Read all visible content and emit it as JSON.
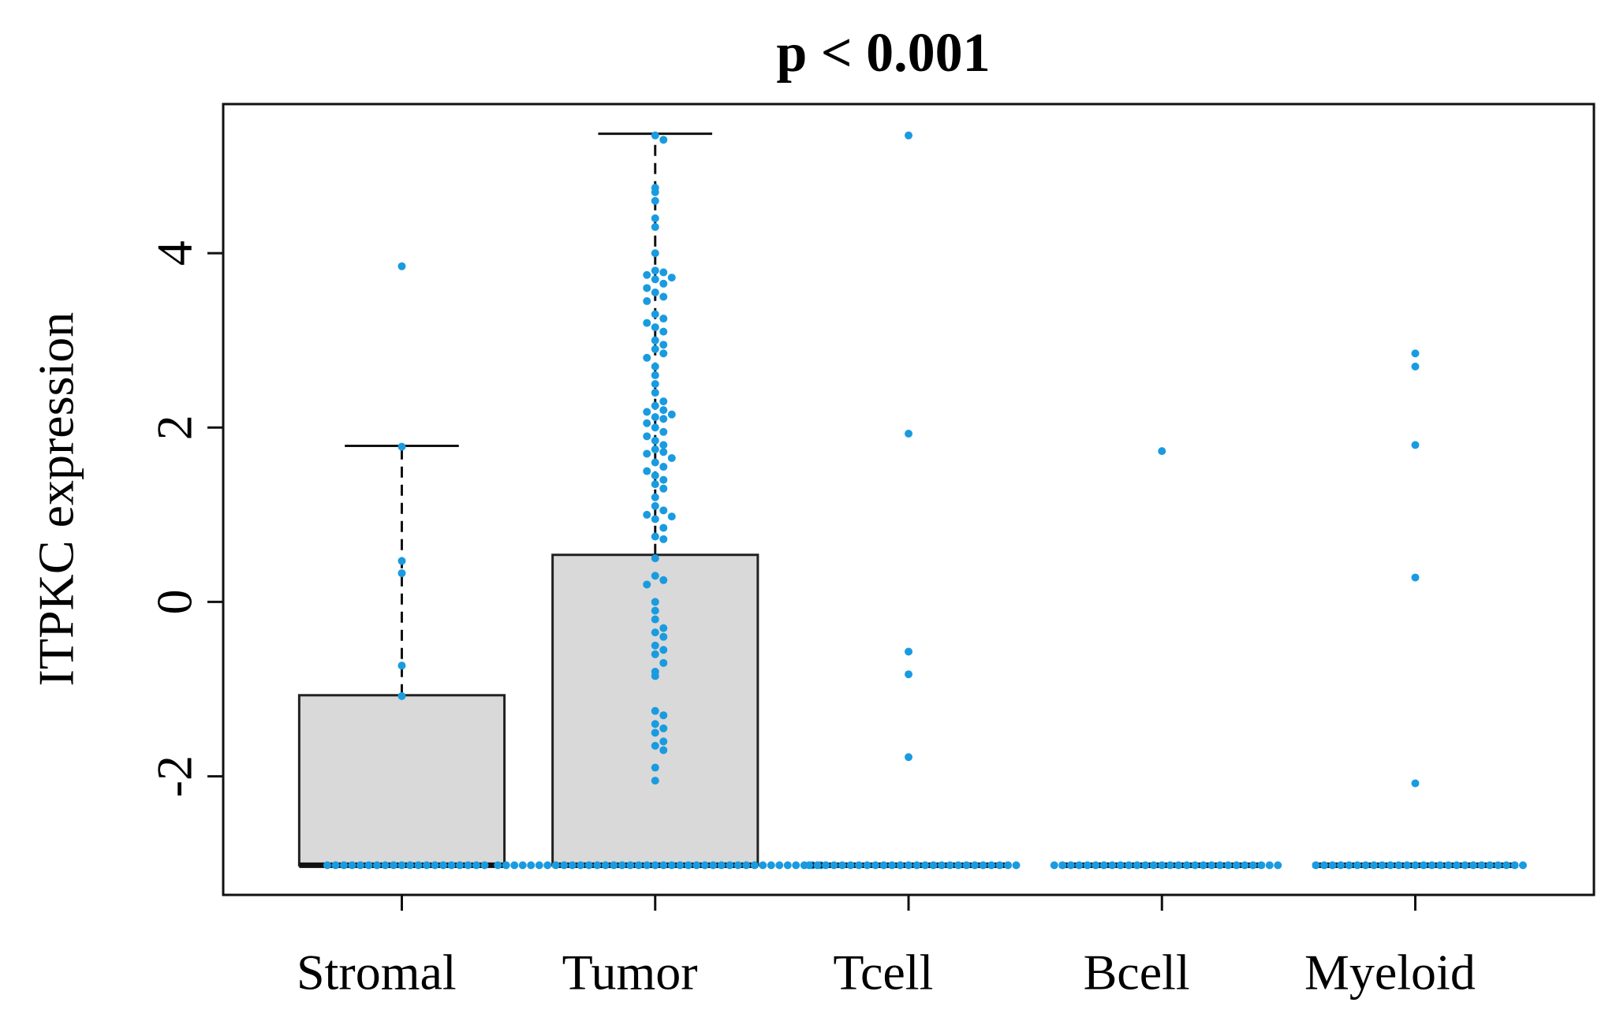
{
  "chart_data": {
    "type": "box",
    "title": "p < 0.001",
    "y_label": "ITPKC expression",
    "categories": [
      "Stromal",
      "Tumor",
      "Tcell",
      "Bcell",
      "Myeloid"
    ],
    "ylim": [
      -3.36,
      5.71
    ],
    "yticks": [
      -2,
      0,
      2,
      4
    ],
    "box_color": "#d9d9d9",
    "point_color": "#1a9be0",
    "boxes": [
      {
        "min": -3.02,
        "q1": -3.02,
        "median": -3.02,
        "q3": -1.07,
        "max": 1.79
      },
      {
        "min": -3.02,
        "q1": -3.02,
        "median": -3.02,
        "q3": 0.54,
        "max": 5.37
      },
      {
        "min": -3.02,
        "q1": -3.02,
        "median": -3.02,
        "q3": -3.02,
        "max": -3.02
      },
      {
        "min": -3.02,
        "q1": -3.02,
        "median": -3.02,
        "q3": -3.02,
        "max": -3.02
      },
      {
        "min": -3.02,
        "q1": -3.02,
        "median": -3.02,
        "q3": -3.02,
        "max": -3.02
      }
    ],
    "points": [
      [
        3.85,
        1.78,
        0.47,
        0.33,
        -0.73,
        -1.08,
        -3.02,
        -3.02,
        -3.02,
        -3.02,
        -3.02,
        -3.02,
        -3.02,
        -3.02,
        -3.02,
        -3.02,
        -3.02,
        -3.02,
        -3.02,
        -3.02,
        -3.02,
        -3.02,
        -3.02,
        -3.02,
        -3.02,
        -3.02
      ],
      [
        5.35,
        5.3,
        4.75,
        4.7,
        4.6,
        4.4,
        4.3,
        4.0,
        3.8,
        3.78,
        3.75,
        3.72,
        3.7,
        3.65,
        3.6,
        3.55,
        3.5,
        3.45,
        3.3,
        3.25,
        3.2,
        3.15,
        3.1,
        3.0,
        2.95,
        2.9,
        2.85,
        2.8,
        2.7,
        2.6,
        2.5,
        2.4,
        2.3,
        2.25,
        2.2,
        2.18,
        2.15,
        2.12,
        2.1,
        2.05,
        2.0,
        1.95,
        1.9,
        1.85,
        1.8,
        1.75,
        1.72,
        1.7,
        1.65,
        1.6,
        1.55,
        1.5,
        1.45,
        1.4,
        1.35,
        1.3,
        1.2,
        1.1,
        1.05,
        1.0,
        0.98,
        0.95,
        0.85,
        0.75,
        0.72,
        0.5,
        0.3,
        0.25,
        0.2,
        0.0,
        -0.1,
        -0.2,
        -0.3,
        -0.35,
        -0.4,
        -0.5,
        -0.55,
        -0.6,
        -0.7,
        -0.8,
        -0.85,
        -1.25,
        -1.3,
        -1.4,
        -1.45,
        -1.5,
        -1.6,
        -1.65,
        -1.7,
        -1.9,
        -2.05,
        -3.02,
        -3.02,
        -3.02,
        -3.02,
        -3.02,
        -3.02,
        -3.02,
        -3.02,
        -3.02,
        -3.02,
        -3.02,
        -3.02,
        -3.02,
        -3.02,
        -3.02,
        -3.02,
        -3.02,
        -3.02,
        -3.02,
        -3.02,
        -3.02,
        -3.02,
        -3.02,
        -3.02,
        -3.02,
        -3.02,
        -3.02,
        -3.02,
        -3.02,
        -3.02,
        -3.02,
        -3.02,
        -3.02,
        -3.02,
        -3.02,
        -3.02,
        -3.02,
        -3.02,
        -3.02,
        -3.02
      ],
      [
        5.35,
        1.93,
        -0.57,
        -0.83,
        -1.78,
        -3.02,
        -3.02,
        -3.02,
        -3.02,
        -3.02,
        -3.02,
        -3.02,
        -3.02,
        -3.02,
        -3.02,
        -3.02,
        -3.02,
        -3.02,
        -3.02,
        -3.02,
        -3.02,
        -3.02,
        -3.02,
        -3.02,
        -3.02,
        -3.02,
        -3.02,
        -3.02,
        -3.02,
        -3.02,
        -3.02
      ],
      [
        1.73,
        -3.02,
        -3.02,
        -3.02,
        -3.02,
        -3.02,
        -3.02,
        -3.02,
        -3.02,
        -3.02,
        -3.02,
        -3.02,
        -3.02,
        -3.02,
        -3.02,
        -3.02,
        -3.02,
        -3.02,
        -3.02,
        -3.02,
        -3.02,
        -3.02,
        -3.02,
        -3.02,
        -3.02,
        -3.02,
        -3.02,
        -3.02,
        -3.02
      ],
      [
        2.85,
        2.7,
        1.8,
        0.28,
        -2.08,
        -3.02,
        -3.02,
        -3.02,
        -3.02,
        -3.02,
        -3.02,
        -3.02,
        -3.02,
        -3.02,
        -3.02,
        -3.02,
        -3.02,
        -3.02,
        -3.02,
        -3.02,
        -3.02,
        -3.02,
        -3.02,
        -3.02,
        -3.02,
        -3.02,
        -3.02,
        -3.02,
        -3.02,
        -3.02,
        -3.02
      ]
    ]
  }
}
